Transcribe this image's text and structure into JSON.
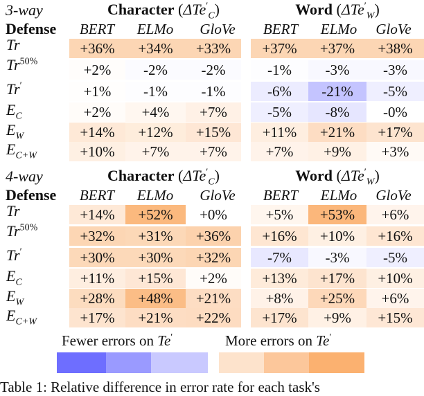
{
  "sections": [
    {
      "label": "3-way",
      "defense_header": "Defense",
      "groups": [
        {
          "name": "Character",
          "delta": "ΔTe",
          "delta_sup": "′",
          "delta_sub": "C"
        },
        {
          "name": "Word",
          "delta": "ΔTe",
          "delta_sup": "′",
          "delta_sub": "W"
        }
      ],
      "columns": [
        "BERT",
        "ELMo",
        "GloVe",
        "BERT",
        "ELMo",
        "GloVe"
      ],
      "rows": [
        {
          "label": "Tr",
          "sup": "",
          "sub": "",
          "values": [
            "+36%",
            "+34%",
            "+33%",
            "+37%",
            "+37%",
            "+38%"
          ],
          "colors": [
            "#fcd6b4",
            "#fcd6b4",
            "#fcd6b4",
            "#fcd6b4",
            "#fcd6b4",
            "#fcd6b4"
          ]
        },
        {
          "label": "Tr",
          "sup": "50%",
          "sub": "",
          "values": [
            "+2%",
            "-2%",
            "-2%",
            "-1%",
            "-3%",
            "-3%"
          ],
          "colors": [
            "#fffdfb",
            "#fbfbff",
            "#fbfbff",
            "#fdfdff",
            "#f8f8ff",
            "#f8f8ff"
          ]
        },
        {
          "label": "Tr",
          "sup": "′",
          "sub": "",
          "values": [
            "+1%",
            "-1%",
            "-1%",
            "-6%",
            "-21%",
            "-5%"
          ],
          "colors": [
            "#fffefd",
            "#fdfdff",
            "#fdfdff",
            "#ececff",
            "#c4c4ff",
            "#efefff"
          ]
        },
        {
          "label": "E",
          "sup": "",
          "sub": "C",
          "values": [
            "+2%",
            "+4%",
            "+7%",
            "-5%",
            "-8%",
            "-0%"
          ],
          "colors": [
            "#fffcf9",
            "#fff7f0",
            "#fff1e6",
            "#efefff",
            "#e6e6ff",
            "#ffffff"
          ]
        },
        {
          "label": "E",
          "sup": "",
          "sub": "W",
          "values": [
            "+14%",
            "+12%",
            "+15%",
            "+11%",
            "+21%",
            "+17%"
          ],
          "colors": [
            "#fee9d7",
            "#feeddc",
            "#fee7d5",
            "#feeee0",
            "#fdddc3",
            "#fde4cf"
          ]
        },
        {
          "label": "E",
          "sup": "",
          "sub": "C+W",
          "values": [
            "+10%",
            "+7%",
            "+7%",
            "+7%",
            "+9%",
            "+3%"
          ],
          "colors": [
            "#fef0e3",
            "#fff3ea",
            "#fff3ea",
            "#fff3ea",
            "#fff1e5",
            "#fffaf6"
          ]
        }
      ]
    },
    {
      "label": "4-way",
      "defense_header": "Defense",
      "groups": [
        {
          "name": "Character",
          "delta": "ΔTe",
          "delta_sup": "′",
          "delta_sub": "C"
        },
        {
          "name": "Word",
          "delta": "ΔTe",
          "delta_sup": "′",
          "delta_sub": "W"
        }
      ],
      "columns": [
        "BERT",
        "ELMo",
        "GloVe",
        "BERT",
        "ELMo",
        "GloVe"
      ],
      "rows": [
        {
          "label": "Tr",
          "sup": "",
          "sub": "",
          "values": [
            "+14%",
            "+52%",
            "+0%",
            "+5%",
            "+53%",
            "+6%"
          ],
          "colors": [
            "#fee9d7",
            "#fbb97e",
            "#ffffff",
            "#fff6ee",
            "#fbb77b",
            "#fff4ec"
          ]
        },
        {
          "label": "Tr",
          "sup": "50%",
          "sub": "",
          "values": [
            "+32%",
            "+31%",
            "+36%",
            "+16%",
            "+10%",
            "+16%"
          ],
          "colors": [
            "#fcd6b4",
            "#fcd8b7",
            "#fcd2ad",
            "#fee6d2",
            "#fef0e3",
            "#fee6d2"
          ]
        },
        {
          "label": "Tr",
          "sup": "′",
          "sub": "",
          "values": [
            "+30%",
            "+30%",
            "+32%",
            "-7%",
            "-3%",
            "-5%"
          ],
          "colors": [
            "#fcd9b9",
            "#fcd9b9",
            "#fcd6b4",
            "#e8e8ff",
            "#f8f8ff",
            "#efefff"
          ]
        },
        {
          "label": "E",
          "sup": "",
          "sub": "C",
          "values": [
            "+11%",
            "+15%",
            "+2%",
            "+13%",
            "+17%",
            "+10%"
          ],
          "colors": [
            "#feeee0",
            "#fee7d5",
            "#fffcf9",
            "#feebda",
            "#fde4cf",
            "#fef0e3"
          ]
        },
        {
          "label": "E",
          "sup": "",
          "sub": "W",
          "values": [
            "+28%",
            "+48%",
            "+21%",
            "+8%",
            "+25%",
            "+6%"
          ],
          "colors": [
            "#fcdcbf",
            "#fbbd86",
            "#fdddc3",
            "#fff2e8",
            "#fdd8b9",
            "#fff4ec"
          ]
        },
        {
          "label": "E",
          "sup": "",
          "sub": "C+W",
          "values": [
            "+17%",
            "+21%",
            "+22%",
            "+17%",
            "+9%",
            "+15%"
          ],
          "colors": [
            "#fde4cf",
            "#fdddc3",
            "#fddcc1",
            "#fde4cf",
            "#fff1e5",
            "#fee7d5"
          ]
        }
      ]
    }
  ],
  "legend": {
    "fewer_label": "Fewer errors on",
    "more_label": "More errors on",
    "symbol": "Te",
    "symbol_sup": "′",
    "fewer_colors": [
      "#6e6eff",
      "#9a9aff",
      "#c9c9ff"
    ],
    "more_colors": [
      "#fde3cc",
      "#fcc79b",
      "#fbb170"
    ]
  },
  "caption": "Table 1: Relative difference in error rate for each task's"
}
